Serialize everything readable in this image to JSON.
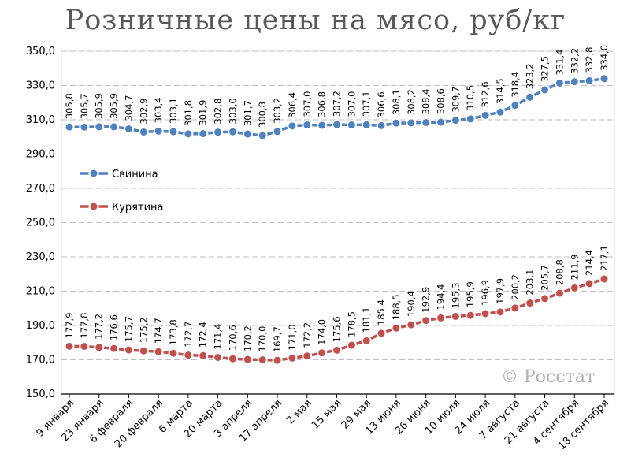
{
  "chart_data": {
    "type": "line",
    "title": "Розничные цены на мясо, руб/кг",
    "watermark": "© Росстат",
    "ylim": [
      150,
      350
    ],
    "yticks": [
      "150,0",
      "170,0",
      "190,0",
      "210,0",
      "230,0",
      "250,0",
      "270,0",
      "290,0",
      "310,0",
      "330,0",
      "350,0"
    ],
    "grid": true,
    "legend_position": "left-middle",
    "x_labels": [
      "9 января",
      "23 января",
      "6 февраля",
      "20 февраля",
      "6 марта",
      "20 марта",
      "3 апреля",
      "17 апреля",
      "2 мая",
      "15 мая",
      "29 мая",
      "13 июня",
      "26 июня",
      "10 июля",
      "24 июля",
      "7 августа",
      "21 августа",
      "4 сентября",
      "18 сентября"
    ],
    "series": [
      {
        "name": "Свинина",
        "color": "#4f81bd",
        "values": [
          305.8,
          305.7,
          305.9,
          305.9,
          304.7,
          302.9,
          303.4,
          303.1,
          301.8,
          301.9,
          302.8,
          303.0,
          301.7,
          300.8,
          303.2,
          306.4,
          307.0,
          306.8,
          307.2,
          307.0,
          307.1,
          306.6,
          308.1,
          308.2,
          308.4,
          308.6,
          309.7,
          310.5,
          312.6,
          314.5,
          318.4,
          323.2,
          327.5,
          331.4,
          332.2,
          332.8,
          334.0
        ],
        "labels": [
          "305,8",
          "305,7",
          "305,9",
          "305,9",
          "304,7",
          "302,9",
          "303,4",
          "303,1",
          "301,8",
          "301,9",
          "302,8",
          "303,0",
          "301,7",
          "300,8",
          "303,2",
          "306,4",
          "307,0",
          "306,8",
          "307,2",
          "307,0",
          "307,1",
          "306,6",
          "308,1",
          "308,2",
          "308,4",
          "308,6",
          "309,7",
          "310,5",
          "312,6",
          "314,5",
          "318,4",
          "323,2",
          "327,5",
          "331,4",
          "332,2",
          "332,8",
          "334,0"
        ]
      },
      {
        "name": "Курятина",
        "color": "#c0504d",
        "values": [
          177.9,
          177.8,
          177.2,
          176.6,
          175.7,
          175.2,
          174.7,
          173.8,
          172.7,
          172.4,
          171.4,
          170.6,
          170.2,
          170.0,
          169.7,
          171.0,
          172.2,
          174.0,
          175.6,
          178.5,
          181.1,
          185.4,
          188.5,
          190.4,
          192.9,
          194.4,
          195.3,
          195.9,
          196.9,
          197.9,
          200.2,
          203.1,
          205.7,
          208.8,
          211.9,
          214.4,
          217.1
        ],
        "labels": [
          "177,9",
          "177,8",
          "177,2",
          "176,6",
          "175,7",
          "175,2",
          "174,7",
          "173,8",
          "172,7",
          "172,4",
          "171,4",
          "170,6",
          "170,2",
          "170,0",
          "169,7",
          "171,0",
          "172,2",
          "174,0",
          "175,6",
          "178,5",
          "181,1",
          "185,4",
          "188,5",
          "190,4",
          "192,9",
          "194,4",
          "195,3",
          "195,9",
          "196,9",
          "197,9",
          "200,2",
          "203,1",
          "205,7",
          "208,8",
          "211,9",
          "214,4",
          "217,1"
        ]
      }
    ]
  }
}
